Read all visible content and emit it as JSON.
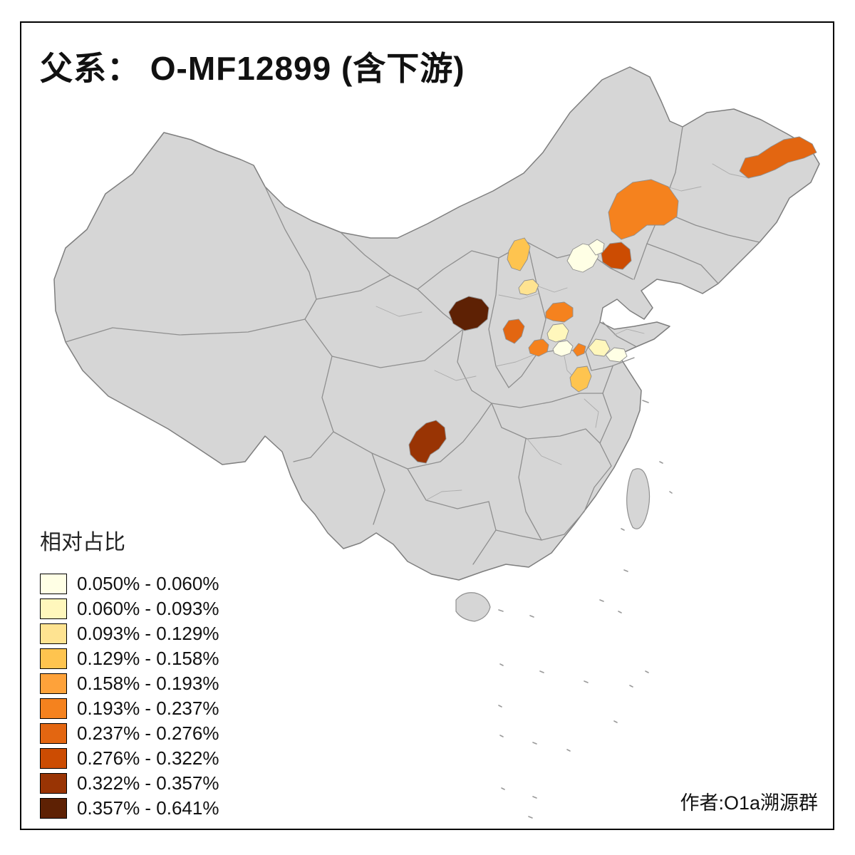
{
  "title": "父系： O-MF12899 (含下游)",
  "attribution": "作者:O1a溯源群",
  "legend": {
    "title": "相对占比",
    "classes": [
      {
        "label": "0.050% - 0.060%",
        "color": "#FFFFE5"
      },
      {
        "label": "0.060% - 0.093%",
        "color": "#FFF7BC"
      },
      {
        "label": "0.093% - 0.129%",
        "color": "#FEE391"
      },
      {
        "label": "0.129% - 0.158%",
        "color": "#FEC44F"
      },
      {
        "label": "0.158% - 0.193%",
        "color": "#FEA23A"
      },
      {
        "label": "0.193% - 0.237%",
        "color": "#F5821E"
      },
      {
        "label": "0.237% - 0.276%",
        "color": "#E36611"
      },
      {
        "label": "0.276% - 0.322%",
        "color": "#CC4C02"
      },
      {
        "label": "0.322% - 0.357%",
        "color": "#993404"
      },
      {
        "label": "0.357% - 0.641%",
        "color": "#5E2104"
      }
    ]
  },
  "map": {
    "land_color": "#D6D6D6",
    "boundary_color": "#8F8F8F",
    "sea_color": "#FFFFFF",
    "regions": [
      {
        "id": "ne-heilongjiang-strip",
        "class_index": 6
      },
      {
        "id": "east-inner-mongolia",
        "class_index": 5
      },
      {
        "id": "liaoning-central",
        "class_index": 7
      },
      {
        "id": "beijing-west",
        "class_index": 0
      },
      {
        "id": "beijing-northeast",
        "class_index": 0
      },
      {
        "id": "shanxi-north",
        "class_index": 3
      },
      {
        "id": "shanxi-central",
        "class_index": 2
      },
      {
        "id": "shaanxi-shanxi-border-dark",
        "class_index": 9
      },
      {
        "id": "hebei-south",
        "class_index": 5
      },
      {
        "id": "shanxi-south",
        "class_index": 6
      },
      {
        "id": "henan-central-west",
        "class_index": 5
      },
      {
        "id": "henan-north",
        "class_index": 1
      },
      {
        "id": "henan-east",
        "class_index": 0
      },
      {
        "id": "shandong-henan-border",
        "class_index": 5
      },
      {
        "id": "shandong-south",
        "class_index": 1
      },
      {
        "id": "jiangsu-north",
        "class_index": 0
      },
      {
        "id": "henan-south",
        "class_index": 3
      },
      {
        "id": "sichuan-south",
        "class_index": 8
      }
    ]
  }
}
